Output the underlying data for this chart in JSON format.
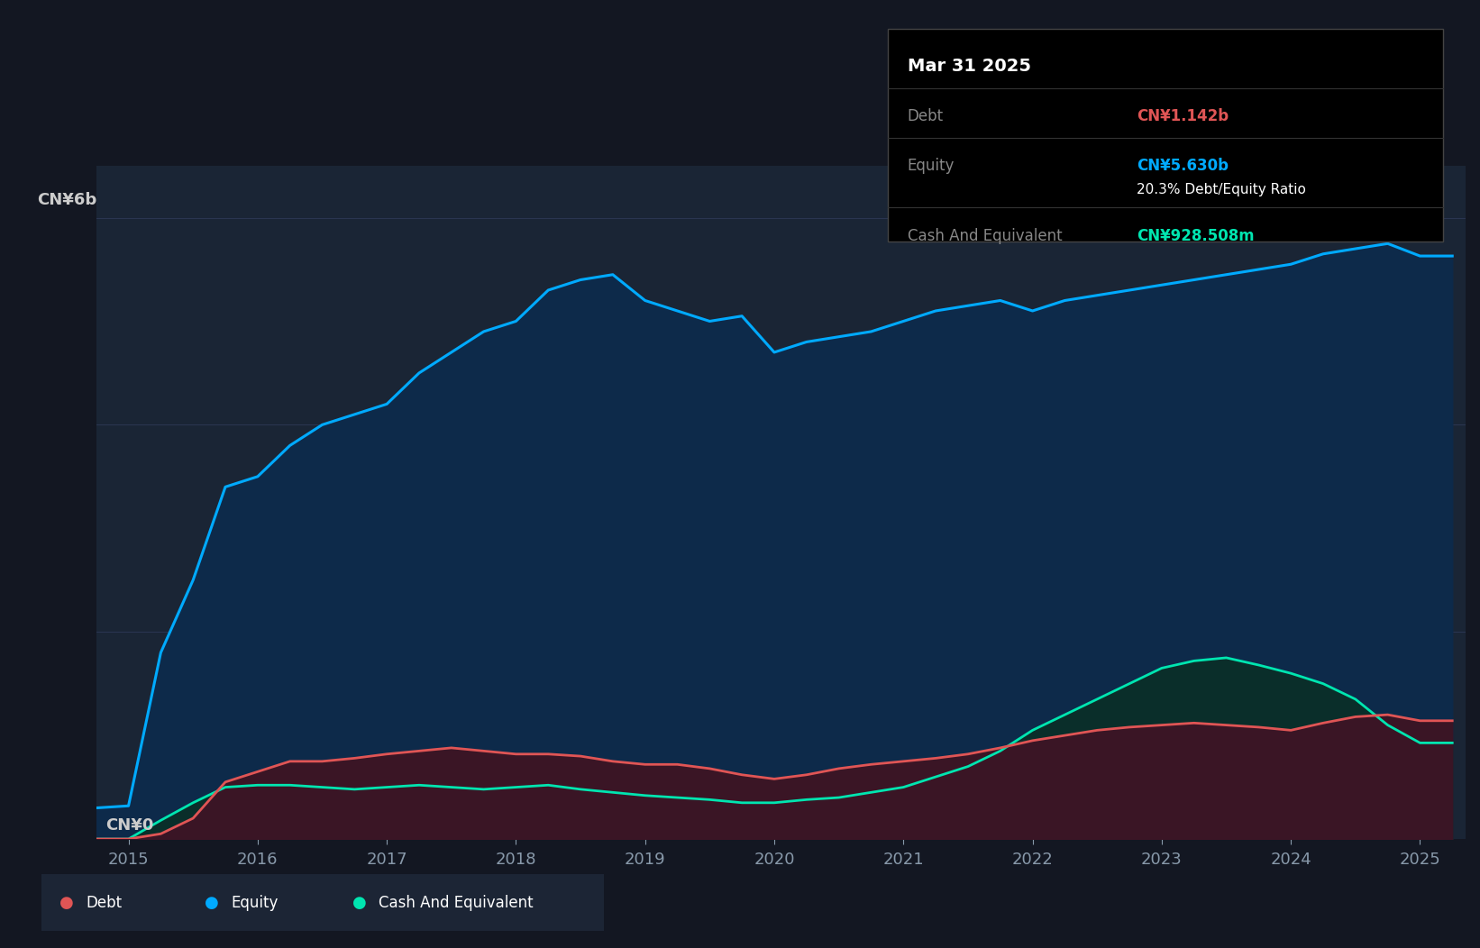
{
  "bg_color": "#131722",
  "plot_bg_color": "#1a2535",
  "grid_color": "#2a3550",
  "equity_color": "#00aaff",
  "equity_fill": "#0d2a4a",
  "debt_color": "#e05555",
  "debt_fill": "#3a1525",
  "cash_color": "#00e5b0",
  "cash_fill": "#0a2e2a",
  "years": [
    2014.75,
    2015.0,
    2015.25,
    2015.5,
    2015.75,
    2016.0,
    2016.25,
    2016.5,
    2016.75,
    2017.0,
    2017.25,
    2017.5,
    2017.75,
    2018.0,
    2018.25,
    2018.5,
    2018.75,
    2019.0,
    2019.25,
    2019.5,
    2019.75,
    2020.0,
    2020.25,
    2020.5,
    2020.75,
    2021.0,
    2021.25,
    2021.5,
    2021.75,
    2022.0,
    2022.25,
    2022.5,
    2022.75,
    2023.0,
    2023.25,
    2023.5,
    2023.75,
    2024.0,
    2024.25,
    2024.5,
    2024.75,
    2025.0,
    2025.25
  ],
  "equity": [
    0.3,
    0.32,
    1.8,
    2.5,
    3.4,
    3.5,
    3.8,
    4.0,
    4.1,
    4.2,
    4.5,
    4.7,
    4.9,
    5.0,
    5.3,
    5.4,
    5.45,
    5.2,
    5.1,
    5.0,
    5.05,
    4.7,
    4.8,
    4.85,
    4.9,
    5.0,
    5.1,
    5.15,
    5.2,
    5.1,
    5.2,
    5.25,
    5.3,
    5.35,
    5.4,
    5.45,
    5.5,
    5.55,
    5.65,
    5.7,
    5.75,
    5.63,
    5.63
  ],
  "debt": [
    0.0,
    0.0,
    0.05,
    0.2,
    0.55,
    0.65,
    0.75,
    0.75,
    0.78,
    0.82,
    0.85,
    0.88,
    0.85,
    0.82,
    0.82,
    0.8,
    0.75,
    0.72,
    0.72,
    0.68,
    0.62,
    0.58,
    0.62,
    0.68,
    0.72,
    0.75,
    0.78,
    0.82,
    0.88,
    0.95,
    1.0,
    1.05,
    1.08,
    1.1,
    1.12,
    1.1,
    1.08,
    1.05,
    1.12,
    1.18,
    1.2,
    1.142,
    1.142
  ],
  "cash": [
    0.0,
    0.0,
    0.18,
    0.35,
    0.5,
    0.52,
    0.52,
    0.5,
    0.48,
    0.5,
    0.52,
    0.5,
    0.48,
    0.5,
    0.52,
    0.48,
    0.45,
    0.42,
    0.4,
    0.38,
    0.35,
    0.35,
    0.38,
    0.4,
    0.45,
    0.5,
    0.6,
    0.7,
    0.85,
    1.05,
    1.2,
    1.35,
    1.5,
    1.65,
    1.72,
    1.75,
    1.68,
    1.6,
    1.5,
    1.35,
    1.1,
    0.928,
    0.928
  ],
  "xlim": [
    2014.75,
    2025.35
  ],
  "ylim": [
    0,
    6.5
  ],
  "xticks": [
    2015,
    2016,
    2017,
    2018,
    2019,
    2020,
    2021,
    2022,
    2023,
    2024,
    2025
  ],
  "tooltip_title": "Mar 31 2025",
  "tooltip_debt_label": "Debt",
  "tooltip_debt_value": "CN¥1.142b",
  "tooltip_equity_label": "Equity",
  "tooltip_equity_value": "CN¥5.630b",
  "tooltip_ratio": "20.3% Debt/Equity Ratio",
  "tooltip_cash_label": "Cash And Equivalent",
  "tooltip_cash_value": "CN¥928.508m",
  "legend_debt": "Debt",
  "legend_equity": "Equity",
  "legend_cash": "Cash And Equivalent"
}
